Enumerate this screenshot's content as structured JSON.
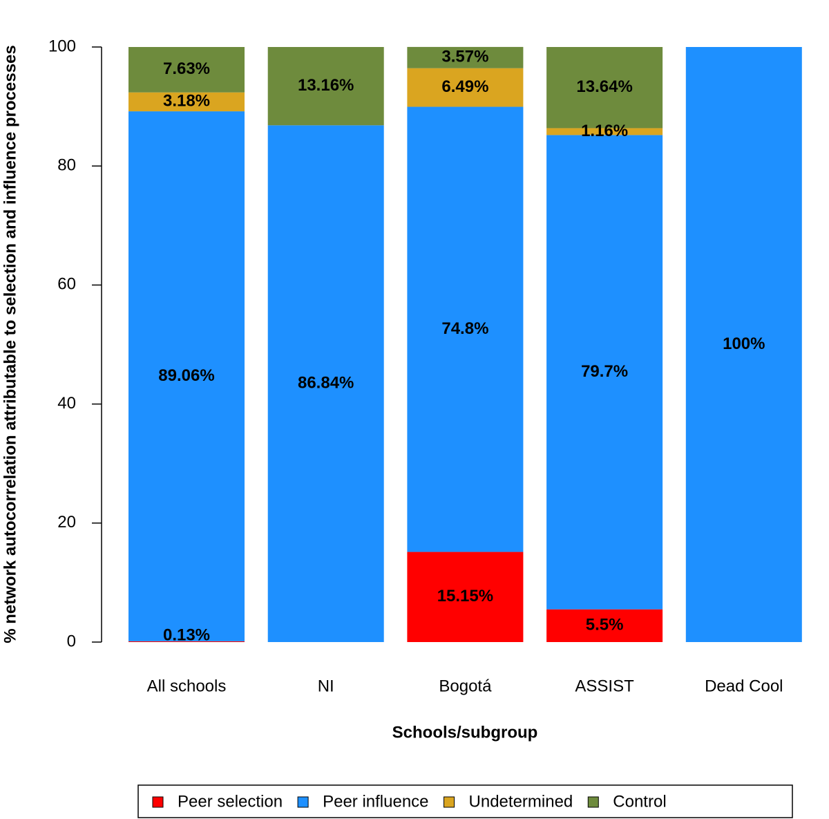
{
  "chart_data": {
    "type": "stacked-bar",
    "y_label": "% network autocorrelation attributable to selection and influence processes",
    "x_label": "Schools/subgroup",
    "categories": [
      "All schools",
      "NI",
      "Bogotá",
      "ASSIST",
      "Dead Cool"
    ],
    "series": [
      {
        "name": "Peer selection",
        "color": "#ff0000",
        "values": [
          0.13,
          null,
          15.15,
          5.5,
          null
        ],
        "value_labels": [
          "0.13%",
          null,
          "15.15%",
          "5.5%",
          null
        ]
      },
      {
        "name": "Peer influence",
        "color": "#1e90ff",
        "values": [
          89.06,
          86.84,
          74.8,
          79.7,
          100
        ],
        "value_labels": [
          "89.06%",
          "86.84%",
          "74.8%",
          "79.7%",
          "100%"
        ]
      },
      {
        "name": "Undetermined",
        "color": "#daa520",
        "values": [
          3.18,
          null,
          6.49,
          1.16,
          null
        ],
        "value_labels": [
          "3.18%",
          null,
          "6.49%",
          "1.16%",
          null
        ]
      },
      {
        "name": "Control",
        "color": "#6e8b3d",
        "values": [
          7.63,
          13.16,
          3.57,
          13.64,
          null
        ],
        "value_labels": [
          "7.63%",
          "13.16%",
          "3.57%",
          "13.64%",
          null
        ]
      }
    ],
    "ylim": [
      0,
      100
    ],
    "yticks": [
      0,
      20,
      40,
      60,
      80,
      100
    ],
    "legend": "bottom"
  }
}
